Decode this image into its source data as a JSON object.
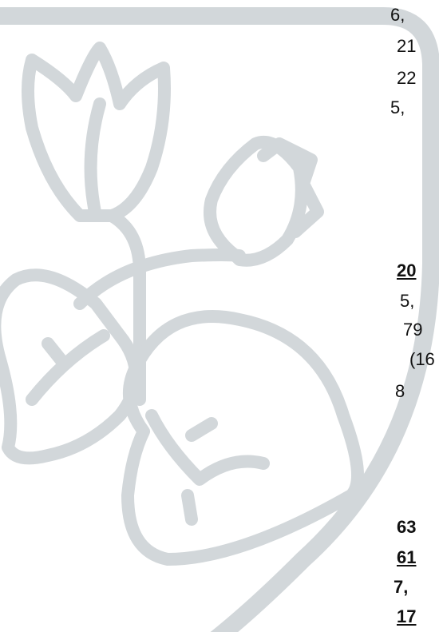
{
  "rows": [
    {
      "text": "6,",
      "bold": false,
      "underline": false
    },
    {
      "text": "21",
      "bold": false,
      "underline": false
    },
    {
      "text": "22",
      "bold": false,
      "underline": false
    },
    {
      "text": "5,",
      "bold": false,
      "underline": false
    },
    {
      "text": "20",
      "bold": true,
      "underline": true
    },
    {
      "text": "5,",
      "bold": false,
      "underline": false
    },
    {
      "text": "79",
      "bold": false,
      "underline": false
    },
    {
      "text": "(16",
      "bold": false,
      "underline": false
    },
    {
      "text": "8",
      "bold": false,
      "underline": false
    },
    {
      "text": "63",
      "bold": true,
      "underline": false
    },
    {
      "text": "61",
      "bold": true,
      "underline": true
    },
    {
      "text": "7,",
      "bold": true,
      "underline": false
    },
    {
      "text": "17",
      "bold": true,
      "underline": true
    }
  ]
}
